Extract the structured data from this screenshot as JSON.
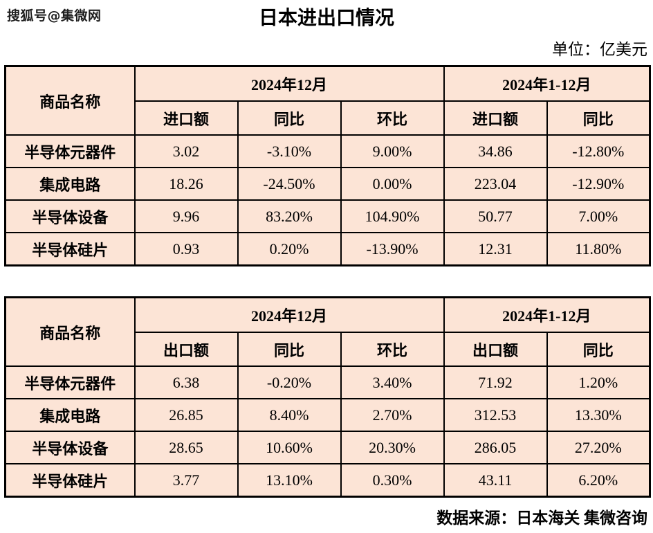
{
  "page": {
    "watermark": "搜狐号@集微网",
    "title": "日本进出口情况",
    "unit_label": "单位：亿美元",
    "source_label": "数据来源：日本海关 集微咨询"
  },
  "colors": {
    "cell_bg": "#fce4d6",
    "border": "#000000",
    "page_bg": "#ffffff",
    "text": "#000000"
  },
  "chart_data": [
    {
      "type": "table",
      "title": "日本进出口情况",
      "unit": "亿美元",
      "name_header": "商品名称",
      "group_headers": [
        "2024年12月",
        "2024年1-12月"
      ],
      "sub_headers": [
        "进口额",
        "同比",
        "环比",
        "进口额",
        "同比"
      ],
      "rows": [
        {
          "name": "半导体元器件",
          "values": [
            "3.02",
            "-3.10%",
            "9.00%",
            "34.86",
            "-12.80%"
          ]
        },
        {
          "name": "集成电路",
          "values": [
            "18.26",
            "-24.50%",
            "0.00%",
            "223.04",
            "-12.90%"
          ]
        },
        {
          "name": "半导体设备",
          "values": [
            "9.96",
            "83.20%",
            "104.90%",
            "50.77",
            "7.00%"
          ]
        },
        {
          "name": "半导体硅片",
          "values": [
            "0.93",
            "0.20%",
            "-13.90%",
            "12.31",
            "11.80%"
          ]
        }
      ]
    },
    {
      "type": "table",
      "title": "日本进出口情况",
      "unit": "亿美元",
      "name_header": "商品名称",
      "group_headers": [
        "2024年12月",
        "2024年1-12月"
      ],
      "sub_headers": [
        "出口额",
        "同比",
        "环比",
        "出口额",
        "同比"
      ],
      "rows": [
        {
          "name": "半导体元器件",
          "values": [
            "6.38",
            "-0.20%",
            "3.40%",
            "71.92",
            "1.20%"
          ]
        },
        {
          "name": "集成电路",
          "values": [
            "26.85",
            "8.40%",
            "2.70%",
            "312.53",
            "13.30%"
          ]
        },
        {
          "name": "半导体设备",
          "values": [
            "28.65",
            "10.60%",
            "20.30%",
            "286.05",
            "27.20%"
          ]
        },
        {
          "name": "半导体硅片",
          "values": [
            "3.77",
            "13.10%",
            "0.30%",
            "43.11",
            "6.20%"
          ]
        }
      ]
    }
  ]
}
